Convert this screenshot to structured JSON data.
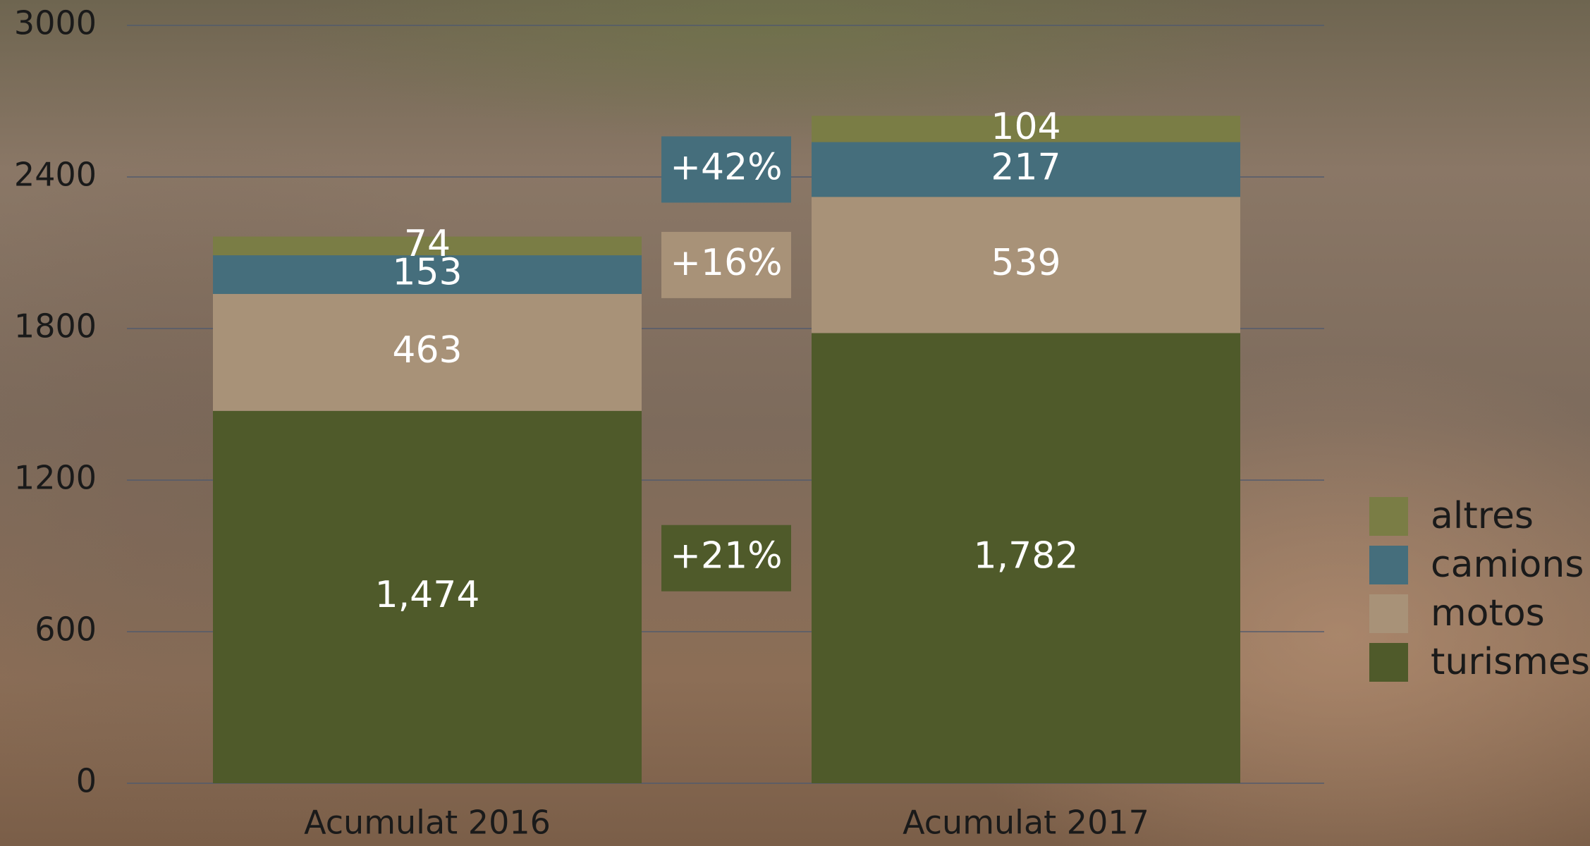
{
  "chart_data": {
    "type": "bar",
    "stacked": true,
    "categories": [
      "Acumulat 2016",
      "Acumulat 2017"
    ],
    "series": [
      {
        "name": "turismes",
        "color": "#4f5a2a",
        "values": [
          1474,
          1782
        ],
        "value_labels": [
          "1,474",
          "1,782"
        ]
      },
      {
        "name": "motos",
        "color": "#a89278",
        "values": [
          463,
          539
        ]
      },
      {
        "name": "camions",
        "color": "#456e7c",
        "values": [
          153,
          217
        ]
      },
      {
        "name": "altres",
        "color": "#7a7d45",
        "values": [
          74,
          104
        ]
      }
    ],
    "annotations": [
      "+42%",
      "+16%",
      "+21%"
    ],
    "ylim": [
      0,
      3000
    ],
    "yticks": [
      0,
      600,
      1200,
      1800,
      2400,
      3000
    ],
    "grid": true,
    "legend": "right"
  }
}
